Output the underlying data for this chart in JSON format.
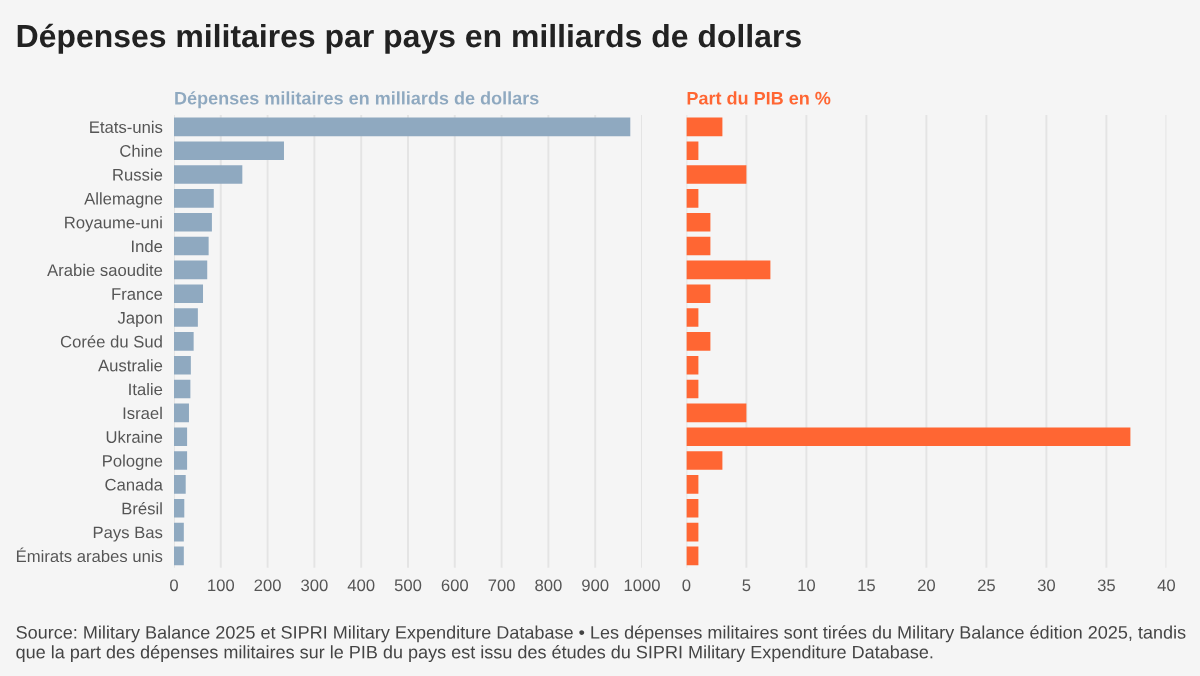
{
  "chart_data": [
    {
      "type": "bar",
      "orientation": "horizontal",
      "title": "Dépenses militaires par pays en milliards de dollars",
      "subtitle": "Dépenses militaires en milliards de dollars",
      "categories": [
        "Etats-unis",
        "Chine",
        "Russie",
        "Allemagne",
        "Royaume-uni",
        "Inde",
        "Arabie saoudite",
        "France",
        "Japon",
        "Corée du Sud",
        "Australie",
        "Italie",
        "Israel",
        "Ukraine",
        "Pologne",
        "Canada",
        "Brésil",
        "Pays Bas",
        "Émirats arabes unis"
      ],
      "series": [
        {
          "color": "#8fa9c0",
          "values": [
            975,
            235,
            146,
            85,
            81,
            74,
            71,
            62,
            51,
            42,
            36,
            35,
            32,
            28,
            28,
            25,
            22,
            21,
            21
          ]
        }
      ],
      "xlim": [
        0,
        1000
      ],
      "xticks": [
        0,
        100,
        200,
        300,
        400,
        500,
        600,
        700,
        800,
        900,
        1000
      ],
      "grid": "x",
      "annotations": [
        "Source: Military Balance 2025 et SIPRI Military Expenditure Database • Les dépenses militaires sont tirées du Military Balance édition 2025, tandis que la part des dépenses militaires sur le PIB du pays est issu des études du SIPRI Military Expenditure Database."
      ]
    },
    {
      "type": "bar",
      "orientation": "horizontal",
      "subtitle": "Part du PIB en %",
      "series": [
        {
          "color": "#ff6633",
          "values": [
            3,
            1,
            5,
            1,
            2,
            2,
            7,
            2,
            1,
            2,
            1,
            1,
            5,
            37,
            3,
            1,
            1,
            1,
            1
          ]
        }
      ],
      "xlim": [
        0,
        40
      ],
      "xticks": [
        0,
        5,
        10,
        15,
        20,
        25,
        30,
        35,
        40
      ],
      "grid": "x"
    }
  ]
}
